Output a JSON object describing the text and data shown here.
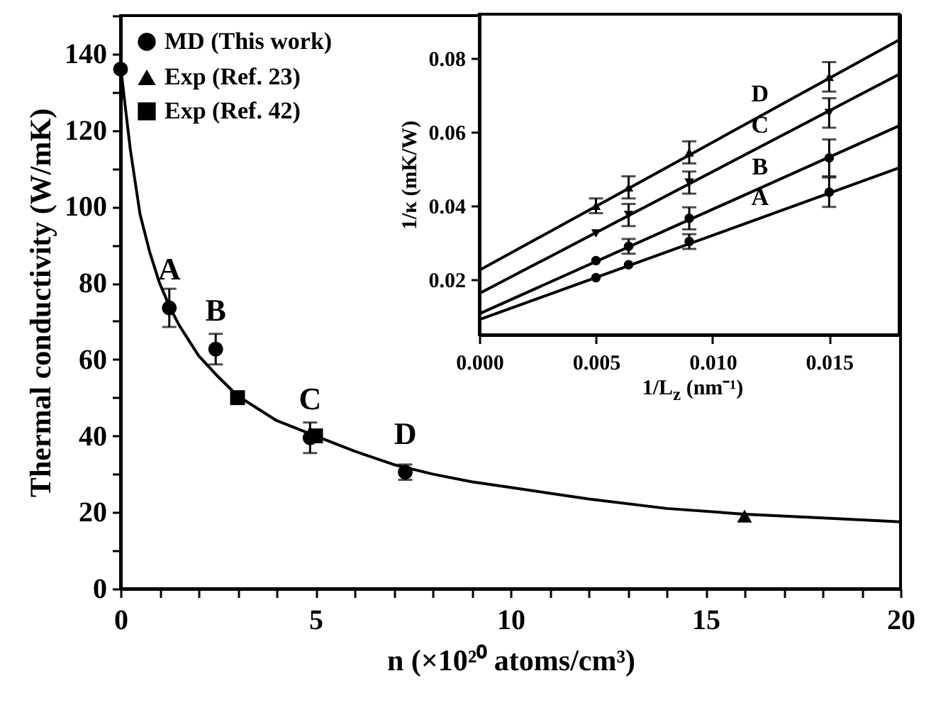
{
  "chart_data": [
    {
      "type": "scatter",
      "xlabel": "n (×10²⁰ atoms/cm³)",
      "ylabel": "Thermal conductivity (W/mK)",
      "xlim": [
        0,
        20
      ],
      "ylim": [
        0,
        150
      ],
      "xticks": [
        0,
        {
          "value": 1,
          "label": null
        },
        {
          "value": 2,
          "label": null
        },
        {
          "value": 3,
          "label": null
        },
        {
          "value": 4,
          "label": null
        },
        5,
        {
          "value": 6,
          "label": null
        },
        {
          "value": 7,
          "label": null
        },
        {
          "value": 8,
          "label": null
        },
        {
          "value": 9,
          "label": null
        },
        10,
        {
          "value": 11,
          "label": null
        },
        {
          "value": 12,
          "label": null
        },
        {
          "value": 13,
          "label": null
        },
        {
          "value": 14,
          "label": null
        },
        15,
        {
          "value": 16,
          "label": null
        },
        {
          "value": 17,
          "label": null
        },
        {
          "value": 18,
          "label": null
        },
        {
          "value": 19,
          "label": null
        },
        20
      ],
      "yticks": [
        0,
        {
          "value": 10,
          "label": null
        },
        20,
        {
          "value": 30,
          "label": null
        },
        40,
        {
          "value": 50,
          "label": null
        },
        60,
        {
          "value": 70,
          "label": null
        },
        80,
        {
          "value": 90,
          "label": null
        },
        100,
        {
          "value": 110,
          "label": null
        },
        120,
        {
          "value": 130,
          "label": null
        },
        140,
        {
          "value": 150,
          "label": null
        }
      ],
      "legend": "top left",
      "grid": false,
      "series": [
        {
          "type": "scatter",
          "name": "MD (This work)",
          "color": "#000000",
          "marker": "circle",
          "x": [
            0,
            1.25,
            2.44,
            4.86,
            7.3
          ],
          "values": [
            136,
            73.5,
            62.7,
            39.5,
            30.5
          ],
          "errors": [
            null,
            5,
            4,
            4,
            2
          ]
        },
        {
          "type": "scatter",
          "name": "Exp (Ref. 23)",
          "color": "#000000",
          "marker": "triangle",
          "x": [
            16
          ],
          "values": [
            19
          ]
        },
        {
          "type": "scatter",
          "name": "Exp (Ref. 42)",
          "color": "#000000",
          "marker": "square",
          "x": [
            3,
            5
          ],
          "values": [
            50,
            40
          ]
        },
        {
          "type": "line",
          "color": "#000000",
          "x": [
            0,
            0.1,
            0.25,
            0.5,
            0.75,
            1,
            1.25,
            1.5,
            2,
            2.5,
            3,
            4,
            5,
            6,
            7,
            8,
            9,
            10,
            12,
            14,
            16,
            18,
            20
          ],
          "values": [
            137,
            128,
            115,
            98,
            88,
            80,
            74,
            69,
            61,
            55.5,
            50.5,
            44,
            40,
            36,
            32.5,
            30,
            28,
            26.5,
            23.5,
            21,
            19.5,
            18.5,
            17.5
          ]
        }
      ],
      "annotations": [
        {
          "text": "A",
          "x": 1.25,
          "y": 73.5
        },
        {
          "text": "B",
          "x": 2.44,
          "y": 62.7
        },
        {
          "text": "C",
          "x": 4.86,
          "y": 39.5
        },
        {
          "text": "D",
          "x": 7.3,
          "y": 30.5
        }
      ]
    },
    {
      "type": "scatter",
      "xlabel": "1/L$_{z}$ (nm⁻¹)",
      "ylabel": "1/κ (mK/W)",
      "xlim": [
        0,
        0.018
      ],
      "ylim": [
        0.005,
        0.092
      ],
      "xticks": [
        {
          "value": 0,
          "label": "0.000"
        },
        0.005,
        {
          "value": 0.01,
          "label": "0.010"
        },
        0.015
      ],
      "yticks": [
        0.02,
        0.04,
        0.06,
        0.08
      ],
      "grid": false,
      "x": [
        0.005,
        0.0064,
        0.009,
        0.015
      ],
      "series": [
        {
          "type": "scatter",
          "color": "#000000",
          "marker": "circle",
          "values": [
            0.0205,
            0.024,
            0.0303,
            0.0437
          ],
          "errors": [
            null,
            null,
            0.002,
            0.004
          ]
        },
        {
          "type": "scatter",
          "color": "#000000",
          "marker": "circle",
          "values": [
            0.0251,
            0.029,
            0.0366,
            0.053
          ],
          "errors": [
            null,
            0.002,
            0.003,
            0.005
          ]
        },
        {
          "type": "scatter",
          "color": "#000000",
          "marker": "triangle-down",
          "values": [
            0.0325,
            0.0375,
            0.0463,
            0.0652
          ],
          "errors": [
            null,
            0.003,
            0.003,
            0.004
          ]
        },
        {
          "type": "scatter",
          "color": "#000000",
          "marker": "triangle",
          "values": [
            0.04,
            0.045,
            0.0545,
            0.075
          ],
          "errors": [
            0.002,
            0.003,
            0.003,
            0.004
          ]
        },
        {
          "type": "line",
          "color": "#000000",
          "x": [
            0,
            0.018
          ],
          "values": [
            0.0091,
            0.0503
          ]
        },
        {
          "type": "line",
          "color": "#000000",
          "x": [
            0,
            0.018
          ],
          "values": [
            0.0107,
            0.0617
          ]
        },
        {
          "type": "line",
          "color": "#000000",
          "x": [
            0,
            0.018
          ],
          "values": [
            0.0162,
            0.0757
          ]
        },
        {
          "type": "line",
          "color": "#000000",
          "x": [
            0,
            0.018
          ],
          "values": [
            0.0225,
            0.085
          ]
        }
      ],
      "annotations": [
        {
          "text": "A",
          "x": 0.0124,
          "y": 0.0375
        },
        {
          "text": "B",
          "x": 0.0124,
          "y": 0.0458
        },
        {
          "text": "C",
          "x": 0.0124,
          "y": 0.0572
        },
        {
          "text": "D",
          "x": 0.0124,
          "y": 0.0656
        }
      ]
    }
  ]
}
